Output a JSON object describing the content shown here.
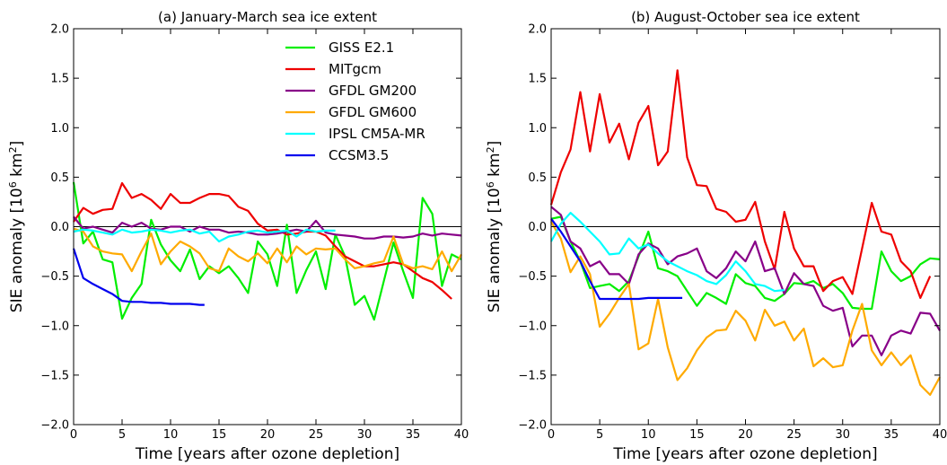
{
  "chart_data": [
    {
      "type": "line",
      "title": "(a) January-March sea ice extent",
      "xlabel": "Time [years after ozone depletion]",
      "ylabel_main": "SIE anomaly [10",
      "ylabel_sup": "6",
      "ylabel_unit": " km",
      "ylabel_sup2": "2",
      "ylabel_close": "]",
      "xlim": [
        0,
        40
      ],
      "ylim": [
        -2.0,
        2.0
      ],
      "xticks": [
        "0",
        "5",
        "10",
        "15",
        "20",
        "25",
        "30",
        "35",
        "40"
      ],
      "xtick_values": [
        0,
        5,
        10,
        15,
        20,
        25,
        30,
        35,
        40
      ],
      "yticks": [
        "−2.0",
        "−1.5",
        "−1.0",
        "−0.5",
        "0.0",
        "0.5",
        "1.0",
        "1.5",
        "2.0"
      ],
      "ytick_values": [
        -2.0,
        -1.5,
        -1.0,
        -0.5,
        0.0,
        0.5,
        1.0,
        1.5,
        2.0
      ],
      "zero_line": true,
      "legend_position": "top-right",
      "series": [
        {
          "name": "GISS E2.1",
          "color": "#00ee00",
          "x": [
            0,
            1,
            2,
            3,
            4,
            5,
            6,
            7,
            8,
            9,
            10,
            11,
            12,
            13,
            14,
            15,
            16,
            17,
            18,
            19,
            20,
            21,
            22,
            23,
            24,
            25,
            26,
            27,
            28,
            29,
            30,
            31,
            32,
            33,
            34,
            35,
            36,
            37,
            38,
            39,
            40
          ],
          "y": [
            0.45,
            -0.17,
            -0.05,
            -0.33,
            -0.36,
            -0.93,
            -0.72,
            -0.58,
            0.07,
            -0.18,
            -0.34,
            -0.45,
            -0.23,
            -0.53,
            -0.4,
            -0.47,
            -0.4,
            -0.52,
            -0.67,
            -0.15,
            -0.28,
            -0.6,
            0.02,
            -0.67,
            -0.44,
            -0.25,
            -0.63,
            -0.08,
            -0.3,
            -0.79,
            -0.7,
            -0.94,
            -0.55,
            -0.16,
            -0.45,
            -0.72,
            0.29,
            0.13,
            -0.6,
            -0.28,
            -0.33
          ]
        },
        {
          "name": "MITgcm",
          "color": "#ee0000",
          "x": [
            0,
            1,
            2,
            3,
            4,
            5,
            6,
            7,
            8,
            9,
            10,
            11,
            12,
            13,
            14,
            15,
            16,
            17,
            18,
            19,
            20,
            21,
            22,
            23,
            24,
            25,
            26,
            27,
            28,
            29,
            30,
            31,
            32,
            33,
            34,
            35,
            36,
            37,
            38,
            39
          ],
          "y": [
            0.05,
            0.19,
            0.13,
            0.17,
            0.18,
            0.44,
            0.29,
            0.33,
            0.27,
            0.18,
            0.33,
            0.24,
            0.24,
            0.29,
            0.33,
            0.33,
            0.31,
            0.2,
            0.16,
            0.03,
            -0.04,
            -0.03,
            -0.08,
            -0.07,
            -0.05,
            -0.05,
            -0.09,
            -0.2,
            -0.3,
            -0.35,
            -0.4,
            -0.4,
            -0.38,
            -0.36,
            -0.38,
            -0.45,
            -0.52,
            -0.56,
            -0.64,
            -0.73
          ]
        },
        {
          "name": "GFDL GM200",
          "color": "#880088",
          "x": [
            0,
            1,
            2,
            3,
            4,
            5,
            6,
            7,
            8,
            9,
            10,
            11,
            12,
            13,
            14,
            15,
            16,
            17,
            18,
            19,
            20,
            21,
            22,
            23,
            24,
            25,
            26,
            27,
            28,
            29,
            30,
            31,
            32,
            33,
            34,
            35,
            36,
            37,
            38,
            39,
            40
          ],
          "y": [
            0.1,
            -0.02,
            0.0,
            -0.03,
            -0.06,
            0.04,
            0.0,
            0.04,
            -0.02,
            -0.03,
            0.0,
            0.0,
            -0.05,
            0.0,
            -0.03,
            -0.03,
            -0.06,
            -0.05,
            -0.06,
            -0.08,
            -0.08,
            -0.07,
            -0.05,
            -0.03,
            -0.05,
            0.06,
            -0.06,
            -0.08,
            -0.09,
            -0.1,
            -0.12,
            -0.12,
            -0.1,
            -0.1,
            -0.11,
            -0.1,
            -0.07,
            -0.09,
            -0.07,
            -0.08,
            -0.09
          ]
        },
        {
          "name": "GFDL GM600",
          "color": "#ffaa00",
          "x": [
            0,
            1,
            2,
            3,
            4,
            5,
            6,
            7,
            8,
            9,
            10,
            11,
            12,
            13,
            14,
            15,
            16,
            17,
            18,
            19,
            20,
            21,
            22,
            23,
            24,
            25,
            26,
            27,
            28,
            29,
            30,
            31,
            32,
            33,
            34,
            35,
            36,
            37,
            38,
            39,
            40
          ],
          "y": [
            -0.02,
            -0.05,
            -0.2,
            -0.25,
            -0.27,
            -0.28,
            -0.45,
            -0.25,
            -0.07,
            -0.38,
            -0.25,
            -0.15,
            -0.2,
            -0.27,
            -0.42,
            -0.45,
            -0.22,
            -0.3,
            -0.35,
            -0.27,
            -0.37,
            -0.22,
            -0.36,
            -0.2,
            -0.28,
            -0.22,
            -0.23,
            -0.22,
            -0.33,
            -0.42,
            -0.4,
            -0.37,
            -0.35,
            -0.1,
            -0.38,
            -0.42,
            -0.4,
            -0.43,
            -0.25,
            -0.45,
            -0.28
          ]
        },
        {
          "name": "IPSL CM5A-MR",
          "color": "#00ffff",
          "x": [
            0,
            1,
            2,
            3,
            4,
            5,
            6,
            7,
            8,
            9,
            10,
            11,
            12,
            13,
            14,
            15,
            16,
            17,
            18,
            19,
            20,
            21,
            22,
            23,
            24,
            25,
            26,
            27
          ],
          "y": [
            -0.05,
            -0.03,
            -0.04,
            -0.06,
            -0.08,
            -0.03,
            -0.06,
            -0.05,
            -0.03,
            -0.04,
            -0.06,
            -0.04,
            -0.03,
            -0.07,
            -0.05,
            -0.15,
            -0.1,
            -0.08,
            -0.05,
            -0.04,
            -0.06,
            -0.05,
            -0.04,
            -0.1,
            -0.03,
            -0.05,
            -0.04,
            -0.04
          ]
        },
        {
          "name": "CCSM3.5",
          "color": "#0000ee",
          "x": [
            0,
            1,
            2,
            3,
            4,
            5,
            6,
            7,
            8,
            9,
            10,
            11,
            12,
            13,
            13.5
          ],
          "y": [
            -0.22,
            -0.52,
            -0.58,
            -0.63,
            -0.68,
            -0.75,
            -0.76,
            -0.76,
            -0.77,
            -0.77,
            -0.78,
            -0.78,
            -0.78,
            -0.79,
            -0.79
          ]
        }
      ]
    },
    {
      "type": "line",
      "title": "(b) August-October sea ice extent",
      "xlabel": "Time [years after ozone depletion]",
      "ylabel_main": "SIE anomaly [10",
      "ylabel_sup": "6",
      "ylabel_unit": " km",
      "ylabel_sup2": "2",
      "ylabel_close": "]",
      "xlim": [
        0,
        40
      ],
      "ylim": [
        -2.0,
        2.0
      ],
      "xticks": [
        "0",
        "5",
        "10",
        "15",
        "20",
        "25",
        "30",
        "35",
        "40"
      ],
      "xtick_values": [
        0,
        5,
        10,
        15,
        20,
        25,
        30,
        35,
        40
      ],
      "yticks": [
        "−2.0",
        "−1.5",
        "−1.0",
        "−0.5",
        "0.0",
        "0.5",
        "1.0",
        "1.5",
        "2.0"
      ],
      "ytick_values": [
        -2.0,
        -1.5,
        -1.0,
        -0.5,
        0.0,
        0.5,
        1.0,
        1.5,
        2.0
      ],
      "zero_line": true,
      "series": [
        {
          "name": "GISS E2.1",
          "color": "#00ee00",
          "x": [
            0,
            1,
            2,
            3,
            4,
            5,
            6,
            7,
            8,
            9,
            10,
            11,
            12,
            13,
            14,
            15,
            16,
            17,
            18,
            19,
            20,
            21,
            22,
            23,
            24,
            25,
            26,
            27,
            28,
            29,
            30,
            31,
            32,
            33,
            34,
            35,
            36,
            37,
            38,
            39,
            40
          ],
          "y": [
            0.08,
            0.1,
            -0.15,
            -0.35,
            -0.62,
            -0.6,
            -0.58,
            -0.65,
            -0.55,
            -0.3,
            -0.05,
            -0.42,
            -0.45,
            -0.5,
            -0.65,
            -0.8,
            -0.67,
            -0.72,
            -0.78,
            -0.48,
            -0.57,
            -0.6,
            -0.72,
            -0.75,
            -0.68,
            -0.57,
            -0.58,
            -0.55,
            -0.62,
            -0.58,
            -0.67,
            -0.82,
            -0.83,
            -0.83,
            -0.25,
            -0.45,
            -0.55,
            -0.5,
            -0.38,
            -0.32,
            -0.33
          ]
        },
        {
          "name": "MITgcm",
          "color": "#ee0000",
          "x": [
            0,
            1,
            2,
            3,
            4,
            5,
            6,
            7,
            8,
            9,
            10,
            11,
            12,
            13,
            14,
            15,
            16,
            17,
            18,
            19,
            20,
            21,
            22,
            23,
            24,
            25,
            26,
            27,
            28,
            29,
            30,
            31,
            32,
            33,
            34,
            35,
            36,
            37,
            38,
            39
          ],
          "y": [
            0.22,
            0.55,
            0.78,
            1.36,
            0.76,
            1.34,
            0.85,
            1.04,
            0.68,
            1.05,
            1.22,
            0.62,
            0.76,
            1.58,
            0.7,
            0.42,
            0.41,
            0.18,
            0.15,
            0.05,
            0.07,
            0.25,
            -0.15,
            -0.43,
            0.15,
            -0.22,
            -0.4,
            -0.4,
            -0.65,
            -0.55,
            -0.51,
            -0.68,
            -0.22,
            0.24,
            -0.05,
            -0.08,
            -0.35,
            -0.45,
            -0.72,
            -0.5
          ]
        },
        {
          "name": "GFDL GM200",
          "color": "#880088",
          "x": [
            0,
            1,
            2,
            3,
            4,
            5,
            6,
            7,
            8,
            9,
            10,
            11,
            12,
            13,
            14,
            15,
            16,
            17,
            18,
            19,
            20,
            21,
            22,
            23,
            24,
            25,
            26,
            27,
            28,
            29,
            30,
            31,
            32,
            33,
            34,
            35,
            36,
            37,
            38,
            39,
            40
          ],
          "y": [
            0.2,
            0.12,
            -0.15,
            -0.22,
            -0.4,
            -0.35,
            -0.48,
            -0.48,
            -0.58,
            -0.28,
            -0.17,
            -0.22,
            -0.38,
            -0.3,
            -0.27,
            -0.22,
            -0.45,
            -0.52,
            -0.42,
            -0.25,
            -0.35,
            -0.15,
            -0.45,
            -0.42,
            -0.68,
            -0.47,
            -0.58,
            -0.6,
            -0.8,
            -0.85,
            -0.82,
            -1.21,
            -1.1,
            -1.1,
            -1.3,
            -1.1,
            -1.05,
            -1.08,
            -0.87,
            -0.88,
            -1.05
          ]
        },
        {
          "name": "GFDL GM600",
          "color": "#ffaa00",
          "x": [
            0,
            1,
            2,
            3,
            4,
            5,
            6,
            7,
            8,
            9,
            10,
            11,
            12,
            13,
            14,
            15,
            16,
            17,
            18,
            19,
            20,
            21,
            22,
            23,
            24,
            25,
            26,
            27,
            28,
            29,
            30,
            31,
            32,
            33,
            34,
            35,
            36,
            37,
            38,
            39,
            40
          ],
          "y": [
            0.05,
            -0.12,
            -0.46,
            -0.3,
            -0.48,
            -1.01,
            -0.88,
            -0.72,
            -0.58,
            -1.24,
            -1.18,
            -0.73,
            -1.22,
            -1.55,
            -1.43,
            -1.25,
            -1.12,
            -1.05,
            -1.04,
            -0.85,
            -0.95,
            -1.15,
            -0.84,
            -1.0,
            -0.96,
            -1.15,
            -1.03,
            -1.41,
            -1.33,
            -1.42,
            -1.4,
            -1.05,
            -0.78,
            -1.25,
            -1.4,
            -1.27,
            -1.4,
            -1.3,
            -1.6,
            -1.7,
            -1.52
          ]
        },
        {
          "name": "IPSL CM5A-MR",
          "color": "#00ffff",
          "x": [
            0,
            1,
            2,
            3,
            4,
            5,
            6,
            7,
            8,
            9,
            10,
            11,
            12,
            13,
            14,
            15,
            16,
            17,
            18,
            19,
            20,
            21,
            22,
            23,
            24
          ],
          "y": [
            -0.15,
            0.03,
            0.14,
            0.05,
            -0.05,
            -0.15,
            -0.28,
            -0.27,
            -0.12,
            -0.22,
            -0.18,
            -0.27,
            -0.35,
            -0.4,
            -0.45,
            -0.49,
            -0.55,
            -0.58,
            -0.49,
            -0.35,
            -0.45,
            -0.58,
            -0.6,
            -0.65,
            -0.64
          ]
        },
        {
          "name": "CCSM3.5",
          "color": "#0000ee",
          "x": [
            0,
            1,
            2,
            3,
            4,
            5,
            6,
            7,
            8,
            9,
            10,
            11,
            12,
            13,
            13.5
          ],
          "y": [
            0.08,
            -0.05,
            -0.2,
            -0.35,
            -0.55,
            -0.73,
            -0.73,
            -0.73,
            -0.73,
            -0.73,
            -0.72,
            -0.72,
            -0.72,
            -0.72,
            -0.72
          ]
        }
      ]
    }
  ]
}
